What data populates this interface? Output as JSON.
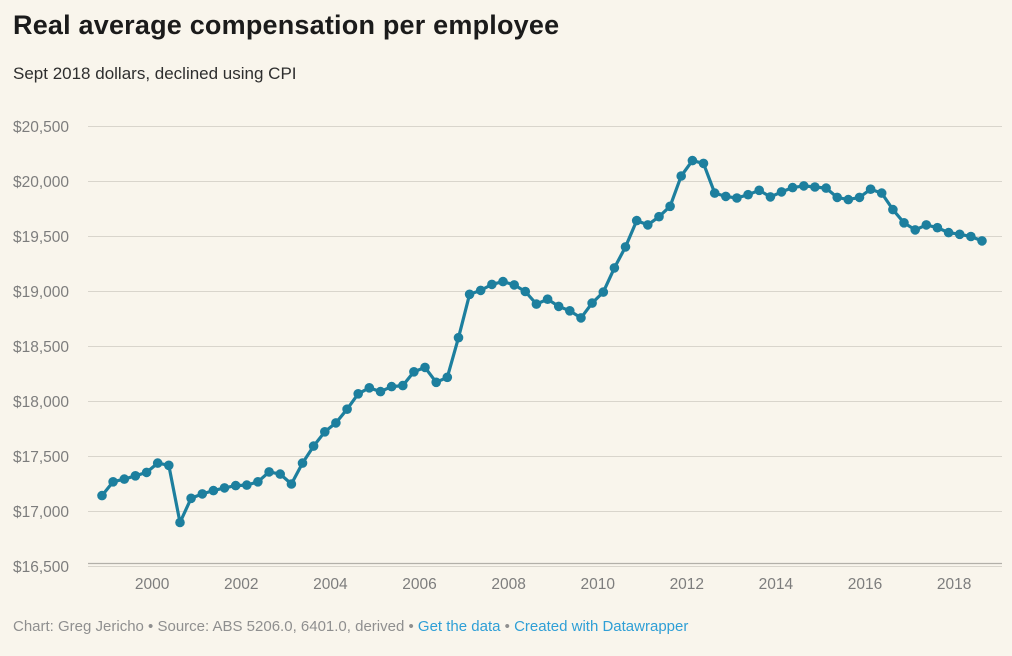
{
  "header": {
    "title": "Real average compensation per employee",
    "subtitle": "Sept 2018 dollars, declined using CPI"
  },
  "footer": {
    "credit_source": "Chart: Greg Jericho • Source: ABS 5206.0, 6401.0, derived",
    "bullet": "•",
    "links": [
      {
        "label": "Get the data"
      },
      {
        "label": "Created with Datawrapper"
      }
    ]
  },
  "colors": {
    "background": "#f9f5ec",
    "series": "#1d7f9e",
    "link_blue": "#2f9fd6",
    "grid": "#d9d5cc",
    "axis_line": "#b3b0a9",
    "tick_text": "#7d7d7d",
    "title_text": "#1b1b1b",
    "footer_text": "#8f8f8f"
  },
  "chart_data": {
    "type": "line",
    "title": "Real average compensation per employee",
    "subtitle": "Sept 2018 dollars, declined using CPI",
    "xlabel": "",
    "ylabel": "",
    "ylim": [
      16500,
      20500
    ],
    "grid": true,
    "legend": false,
    "marker": "circle",
    "x_numeric_start": 1998.875,
    "x_step": 0.25,
    "x_range": [
      1998.7,
      2018.85
    ],
    "yticks": [
      {
        "value": 16500,
        "label": "$16,500"
      },
      {
        "value": 17000,
        "label": "$17,000"
      },
      {
        "value": 17500,
        "label": "$17,500"
      },
      {
        "value": 18000,
        "label": "$18,000"
      },
      {
        "value": 18500,
        "label": "$18,500"
      },
      {
        "value": 19000,
        "label": "$19,000"
      },
      {
        "value": 19500,
        "label": "$19,500"
      },
      {
        "value": 20000,
        "label": "$20,000"
      },
      {
        "value": 20500,
        "label": "$20,500"
      }
    ],
    "xticks": [
      {
        "value": 2000,
        "label": "2000"
      },
      {
        "value": 2002,
        "label": "2002"
      },
      {
        "value": 2004,
        "label": "2004"
      },
      {
        "value": 2006,
        "label": "2006"
      },
      {
        "value": 2008,
        "label": "2008"
      },
      {
        "value": 2010,
        "label": "2010"
      },
      {
        "value": 2012,
        "label": "2012"
      },
      {
        "value": 2014,
        "label": "2014"
      },
      {
        "value": 2016,
        "label": "2016"
      },
      {
        "value": 2018,
        "label": "2018"
      }
    ],
    "series_name": "Real average compensation per employee (Sept 2018 dollars)",
    "periods": [
      "Dec-1998",
      "Mar-1999",
      "Jun-1999",
      "Sep-1999",
      "Dec-1999",
      "Mar-2000",
      "Jun-2000",
      "Sep-2000",
      "Dec-2000",
      "Mar-2001",
      "Jun-2001",
      "Sep-2001",
      "Dec-2001",
      "Mar-2002",
      "Jun-2002",
      "Sep-2002",
      "Dec-2002",
      "Mar-2003",
      "Jun-2003",
      "Sep-2003",
      "Dec-2003",
      "Mar-2004",
      "Jun-2004",
      "Sep-2004",
      "Dec-2004",
      "Mar-2005",
      "Jun-2005",
      "Sep-2005",
      "Dec-2005",
      "Mar-2006",
      "Jun-2006",
      "Sep-2006",
      "Dec-2006",
      "Mar-2007",
      "Jun-2007",
      "Sep-2007",
      "Dec-2007",
      "Mar-2008",
      "Jun-2008",
      "Sep-2008",
      "Dec-2008",
      "Mar-2009",
      "Jun-2009",
      "Sep-2009",
      "Dec-2009",
      "Mar-2010",
      "Jun-2010",
      "Sep-2010",
      "Dec-2010",
      "Mar-2011",
      "Jun-2011",
      "Sep-2011",
      "Dec-2011",
      "Mar-2012",
      "Jun-2012",
      "Sep-2012",
      "Dec-2012",
      "Mar-2013",
      "Jun-2013",
      "Sep-2013",
      "Dec-2013",
      "Mar-2014",
      "Jun-2014",
      "Sep-2014",
      "Dec-2014",
      "Mar-2015",
      "Jun-2015",
      "Sep-2015",
      "Dec-2015",
      "Mar-2016",
      "Jun-2016",
      "Sep-2016",
      "Dec-2016",
      "Mar-2017",
      "Jun-2017",
      "Sep-2017",
      "Dec-2017",
      "Mar-2018",
      "Jun-2018",
      "Sep-2018"
    ],
    "values": [
      17145,
      17270,
      17295,
      17325,
      17355,
      17440,
      17420,
      16900,
      17120,
      17160,
      17190,
      17215,
      17235,
      17240,
      17270,
      17360,
      17340,
      17250,
      17440,
      17595,
      17725,
      17805,
      17930,
      18070,
      18125,
      18090,
      18135,
      18145,
      18270,
      18310,
      18175,
      18220,
      18580,
      18975,
      19010,
      19065,
      19090,
      19060,
      19000,
      18885,
      18930,
      18865,
      18825,
      18760,
      18895,
      18995,
      19215,
      19405,
      19645,
      19605,
      19680,
      19775,
      20050,
      20190,
      20165,
      19895,
      19865,
      19850,
      19880,
      19920,
      19860,
      19905,
      19945,
      19960,
      19950,
      19940,
      19855,
      19835,
      19855,
      19930,
      19895,
      19745,
      19625,
      19560,
      19605,
      19580,
      19535,
      19520,
      19500,
      19460
    ]
  }
}
